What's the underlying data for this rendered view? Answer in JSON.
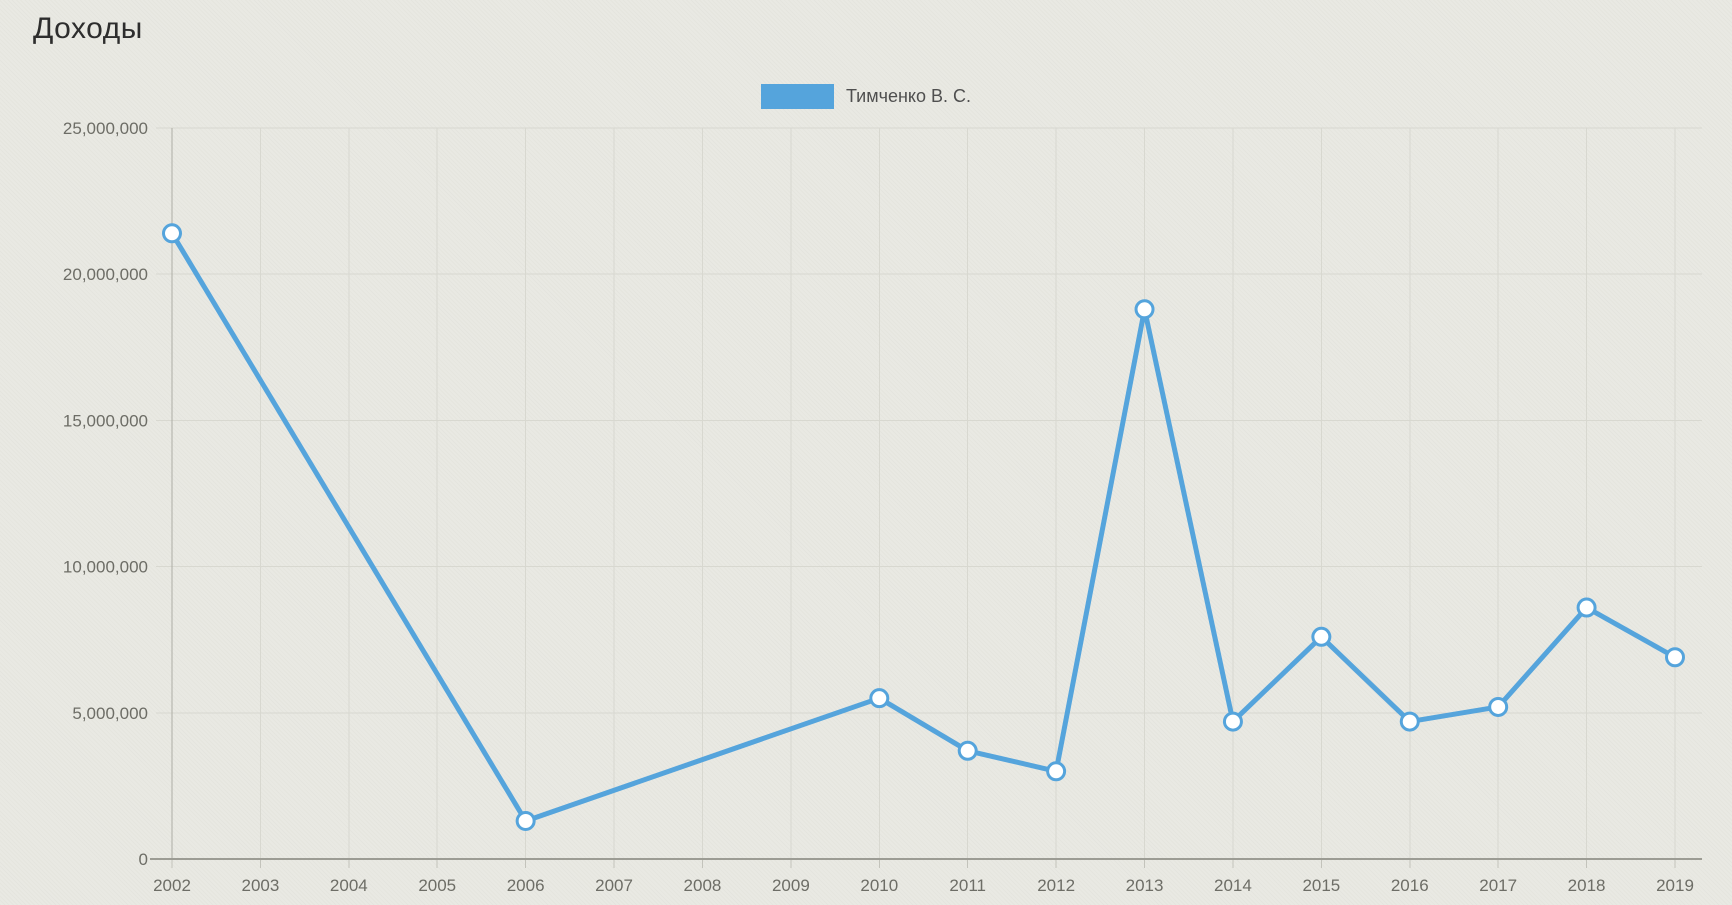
{
  "chart": {
    "title": "Доходы",
    "series_name": "Тимченко В. С.",
    "accent_color": "#55a4dc"
  },
  "chart_data": {
    "type": "line",
    "title": "Доходы",
    "legend": [
      "Тимченко В. С."
    ],
    "legend_position": "top-center",
    "grid": true,
    "xlabel": "",
    "ylabel": "",
    "x_tick_labels": [
      "2002",
      "2003",
      "2004",
      "2005",
      "2006",
      "2007",
      "2008",
      "2009",
      "2010",
      "2011",
      "2012",
      "2013",
      "2014",
      "2015",
      "2016",
      "2017",
      "2018",
      "2019"
    ],
    "y_tick_values": [
      0,
      5000000,
      10000000,
      15000000,
      20000000,
      25000000
    ],
    "y_tick_labels": [
      "0",
      "5,000,000",
      "10,000,000",
      "15,000,000",
      "20,000,000",
      "25,000,000"
    ],
    "xlim": [
      2002,
      2019
    ],
    "ylim": [
      0,
      25000000
    ],
    "series": [
      {
        "name": "Тимченко В. С.",
        "color": "#55a4dc",
        "marker": "circle-white-filled",
        "points": [
          {
            "year": 2002,
            "value": 21400000
          },
          {
            "year": 2006,
            "value": 1300000
          },
          {
            "year": 2010,
            "value": 5500000
          },
          {
            "year": 2011,
            "value": 3700000
          },
          {
            "year": 2012,
            "value": 3000000
          },
          {
            "year": 2013,
            "value": 18800000
          },
          {
            "year": 2014,
            "value": 4700000
          },
          {
            "year": 2015,
            "value": 7600000
          },
          {
            "year": 2016,
            "value": 4700000
          },
          {
            "year": 2017,
            "value": 5200000
          },
          {
            "year": 2018,
            "value": 8600000
          },
          {
            "year": 2019,
            "value": 6900000
          }
        ]
      }
    ]
  }
}
